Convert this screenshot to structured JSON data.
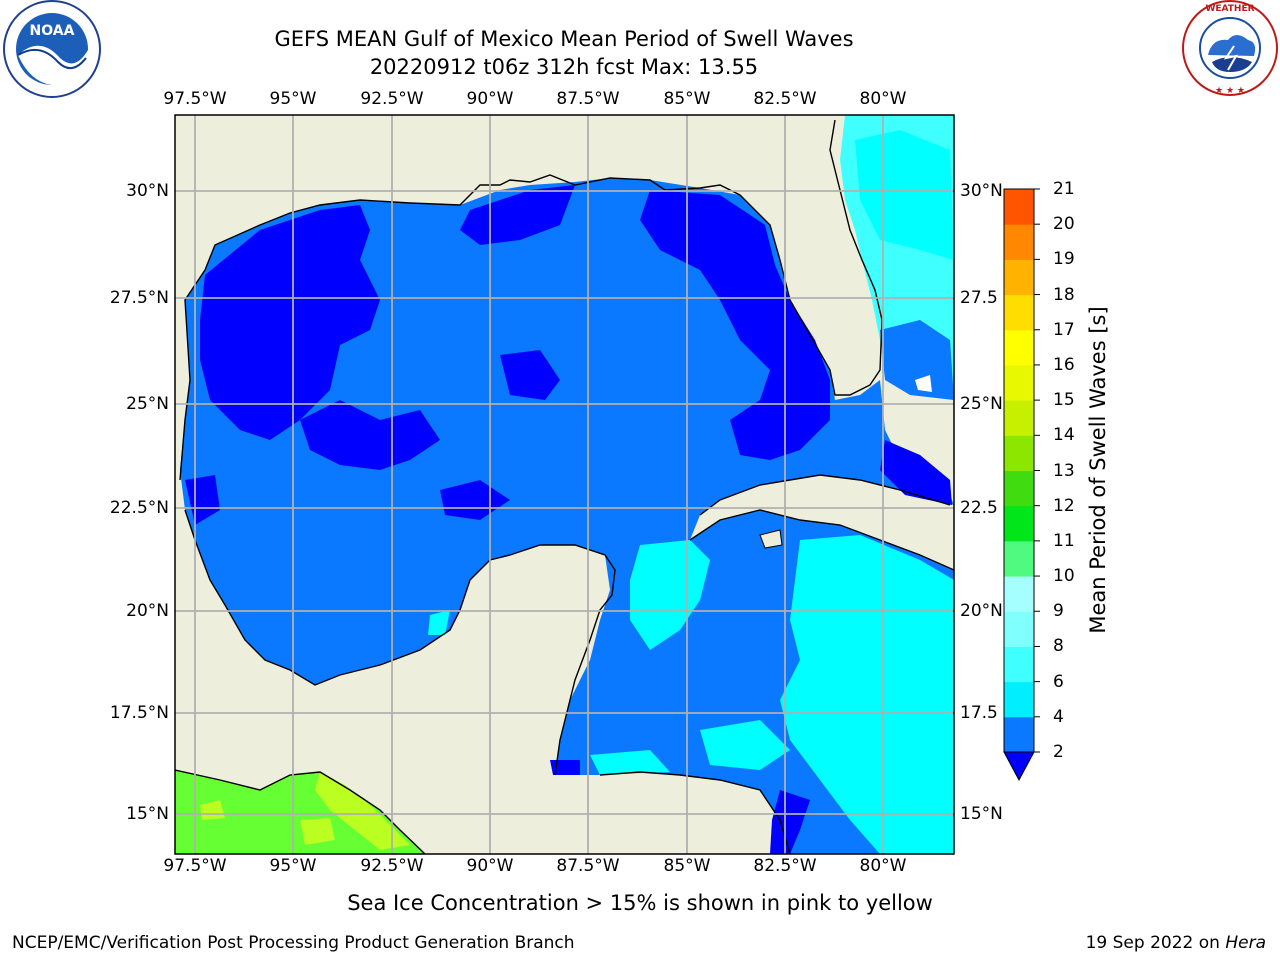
{
  "title_line1": "GEFS MEAN Gulf of Mexico Mean Period of Swell Waves",
  "title_line2": "20220912 t06z 312h fcst   Max: 13.55",
  "lon_labels": [
    "97.5°W",
    "95°W",
    "92.5°W",
    "90°W",
    "87.5°W",
    "85°W",
    "82.5°W",
    "80°W"
  ],
  "lat_labels": [
    "30°N",
    "27.5°N",
    "25°N",
    "22.5°N",
    "20°N",
    "17.5°N",
    "15°N"
  ],
  "lat_labels_right": [
    "30°N",
    "27.5",
    "25°N",
    "22.5",
    "20°N",
    "17.5",
    "15°N"
  ],
  "colorbar": {
    "label": "Mean Period of Swell Waves [s]",
    "ticks": [
      "2",
      "4",
      "6",
      "8",
      "9",
      "10",
      "11",
      "12",
      "13",
      "14",
      "15",
      "16",
      "17",
      "18",
      "19",
      "20",
      "21"
    ],
    "colors": [
      "#0a79ff",
      "#00eeff",
      "#40ffff",
      "#80ffff",
      "#a6ffff",
      "#50fa80",
      "#00e61a",
      "#40dc10",
      "#8ce600",
      "#c6f000",
      "#e8f800",
      "#ffff00",
      "#ffdd00",
      "#ffb300",
      "#ff8800",
      "#ff5500",
      "#ff2600",
      "#ff0000"
    ],
    "under_color": "#0000ff"
  },
  "colors": {
    "land": "#eeeedd",
    "deep_blue": "#0000ff",
    "mid_blue": "#0a79ff",
    "cyan": "#00ffff",
    "light_cyan": "#40ffff",
    "green": "#66ff33",
    "yellow_green": "#bbff22",
    "grid": "#b0b0b0"
  },
  "logos": {
    "left": "NOAA",
    "right": "NATIONAL WEATHER SERVICE"
  },
  "note": "Sea Ice Concentration > 15% is shown in pink to yellow",
  "footer_left": "NCEP/EMC/Verification Post Processing Product Generation Branch",
  "footer_date": "19 Sep 2022 on ",
  "footer_machine": "Hera"
}
